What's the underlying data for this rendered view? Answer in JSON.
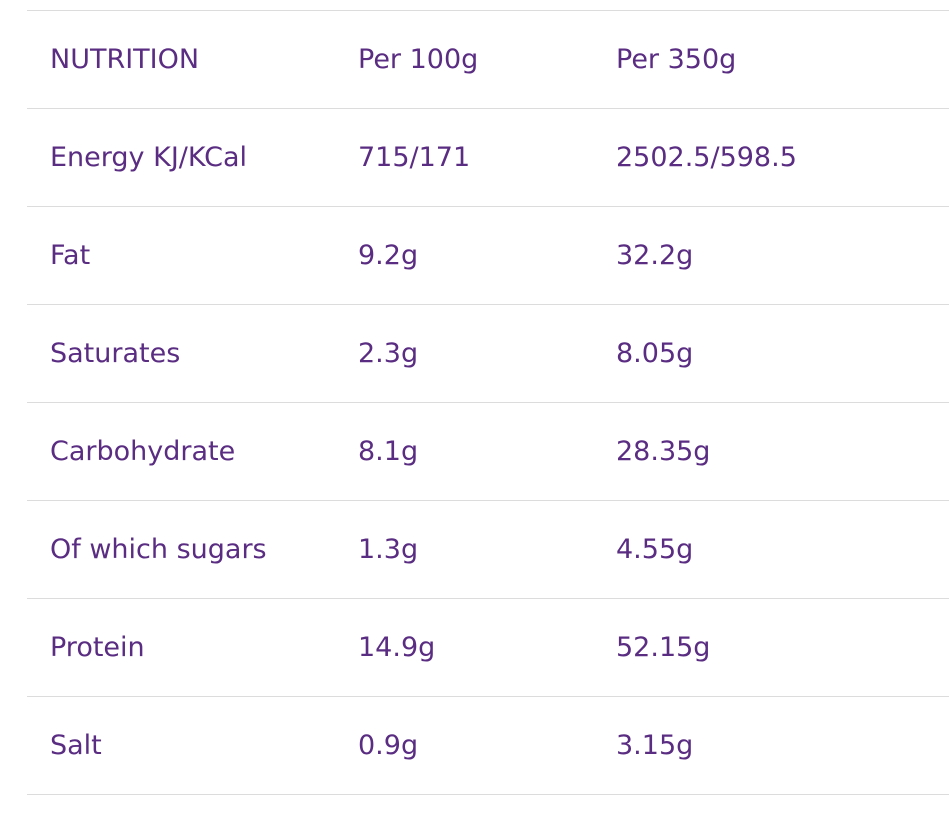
{
  "table": {
    "header": [
      "NUTRITION",
      "Per 100g",
      "Per 350g"
    ],
    "rows": [
      [
        "Energy KJ/KCal",
        "715/171",
        "2502.5/598.5"
      ],
      [
        "Fat",
        "9.2g",
        "32.2g"
      ],
      [
        "Saturates",
        "2.3g",
        "8.05g"
      ],
      [
        "Carbohydrate",
        "8.1g",
        "28.35g"
      ],
      [
        "Of which sugars",
        "1.3g",
        "4.55g"
      ],
      [
        "Protein",
        "14.9g",
        "52.15g"
      ],
      [
        "Salt",
        "0.9g",
        "3.15g"
      ]
    ]
  }
}
